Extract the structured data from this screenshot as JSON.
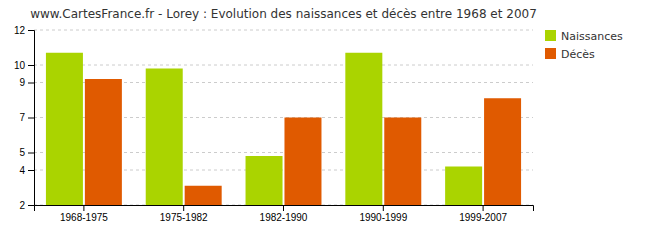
{
  "chart_data": {
    "type": "bar",
    "title": "www.CartesFrance.fr - Lorey : Evolution des naissances et décès entre 1968 et 2007",
    "categories": [
      "1968-1975",
      "1975-1982",
      "1982-1990",
      "1990-1999",
      "1999-2007"
    ],
    "series": [
      {
        "name": "Naissances",
        "color": "#aad400",
        "values": [
          10.7,
          9.8,
          4.8,
          10.7,
          4.2
        ]
      },
      {
        "name": "Décès",
        "color": "#e05a00",
        "values": [
          9.2,
          3.1,
          7.0,
          7.0,
          8.1
        ]
      }
    ],
    "ylim": [
      2,
      12
    ],
    "yticks": [
      2,
      4,
      5,
      7,
      9,
      10,
      12
    ],
    "grid": true,
    "legend": "upper right"
  }
}
